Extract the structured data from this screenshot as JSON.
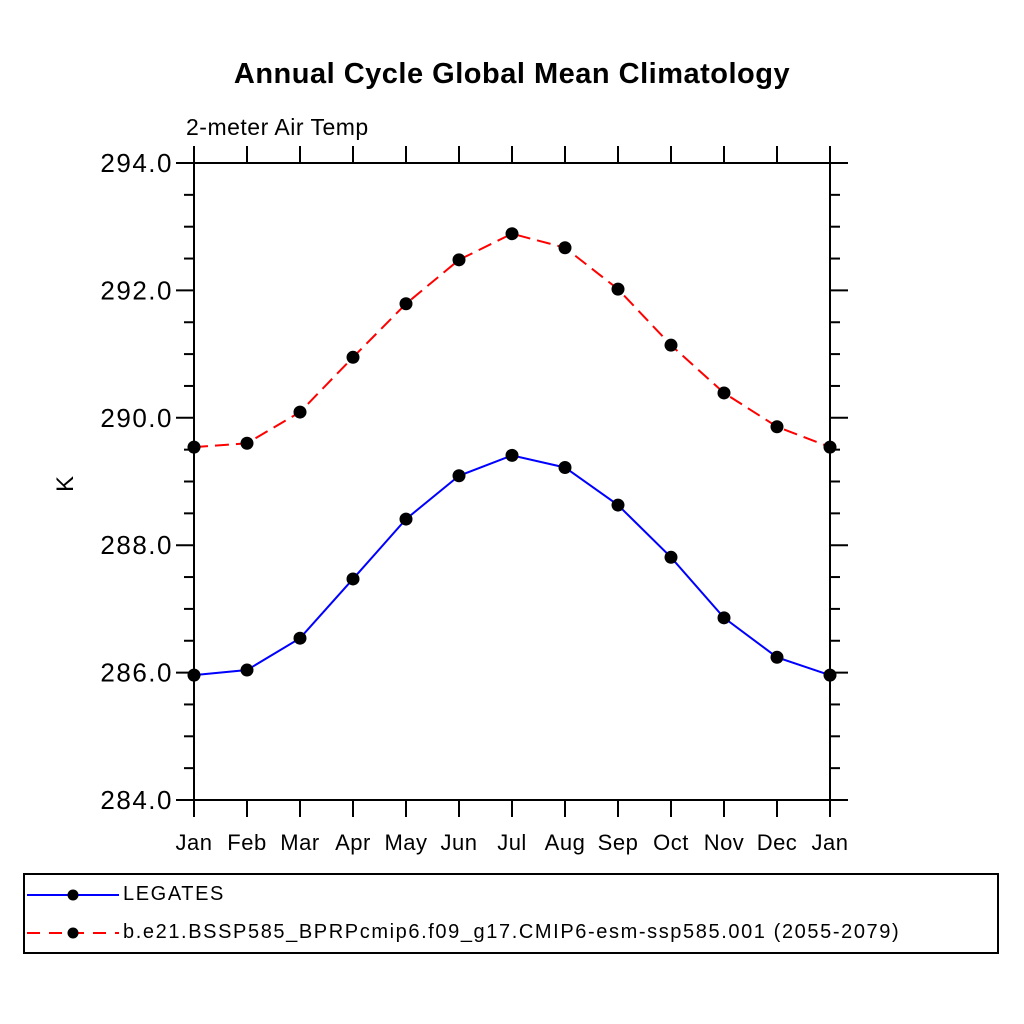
{
  "chart_data": {
    "type": "line",
    "title": "Annual Cycle Global Mean Climatology",
    "subtitle": "2-meter Air Temp",
    "xlabel": "",
    "ylabel": "K",
    "categories": [
      "Jan",
      "Feb",
      "Mar",
      "Apr",
      "May",
      "Jun",
      "Jul",
      "Aug",
      "Sep",
      "Oct",
      "Nov",
      "Dec",
      "Jan"
    ],
    "ylim": [
      284.0,
      294.0
    ],
    "y_major_step": 2.0,
    "y_minor_step": 0.5,
    "y_tick_labels": [
      "284.0",
      "286.0",
      "288.0",
      "290.0",
      "292.0",
      "294.0"
    ],
    "grid": false,
    "legend_position": "bottom",
    "frame_color": "#000000",
    "marker_color": "#000000",
    "series": [
      {
        "name": "LEGATES",
        "line_color": "#0000ff",
        "line_style": "solid",
        "marker": "filled-circle",
        "values": [
          285.96,
          286.04,
          286.54,
          287.47,
          288.41,
          289.09,
          289.41,
          289.22,
          288.63,
          287.81,
          286.86,
          286.24,
          285.96
        ]
      },
      {
        "name": "b.e21.BSSP585_BPRPcmip6.f09_g17.CMIP6-esm-ssp585.001 (2055-2079)",
        "line_color": "#ff0000",
        "line_style": "dashed",
        "marker": "filled-circle",
        "values": [
          289.54,
          289.6,
          290.09,
          290.95,
          291.79,
          292.48,
          292.89,
          292.67,
          292.02,
          291.14,
          290.39,
          289.86,
          289.54
        ]
      }
    ]
  }
}
